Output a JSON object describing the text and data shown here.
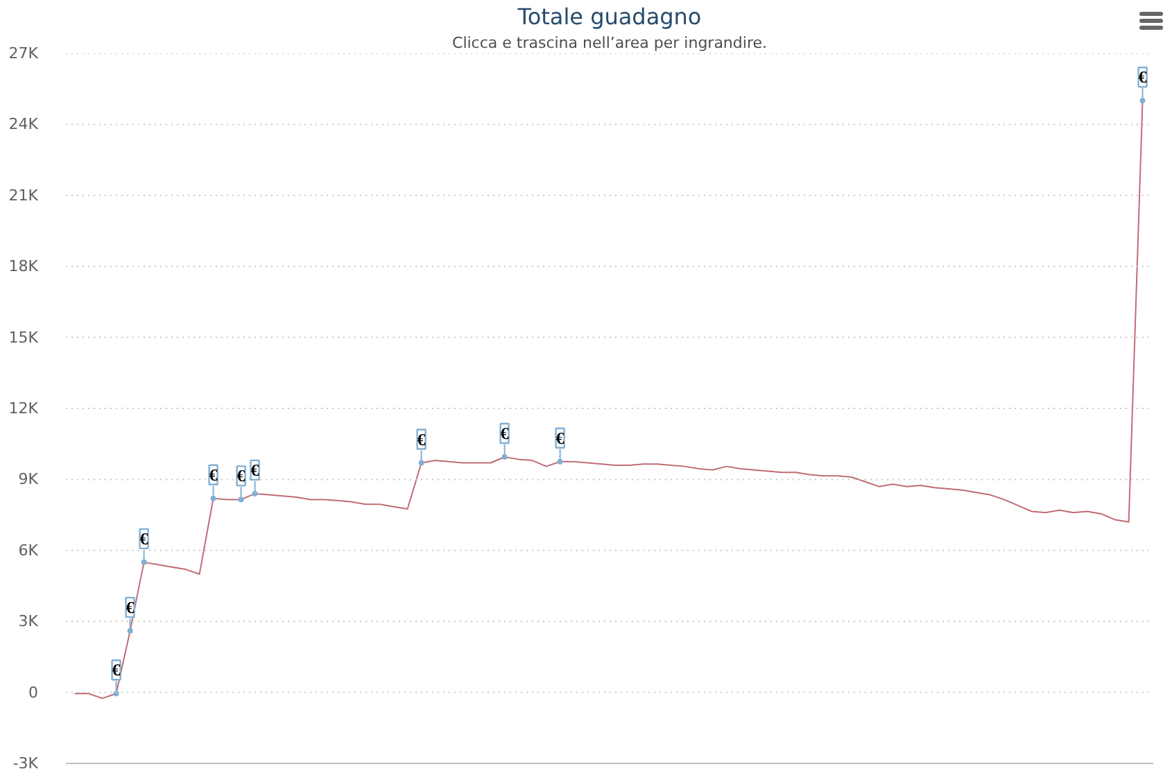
{
  "chart_data": {
    "type": "line",
    "title": "Totale guadagno",
    "subtitle": "Clicca e trascina nell’area per ingrandire.",
    "categories": [
      null,
      null,
      null,
      null,
      null,
      null,
      null,
      null,
      null,
      null,
      null,
      null,
      null,
      null,
      null,
      null,
      null,
      null,
      null,
      null,
      null,
      null,
      null,
      null,
      null,
      null,
      null,
      null,
      null,
      null,
      null,
      null,
      null,
      null,
      null,
      null,
      null,
      null,
      null,
      null,
      null,
      null,
      null,
      null,
      null,
      null,
      null,
      null,
      null,
      null,
      null,
      null,
      null,
      null,
      null,
      null,
      null,
      null,
      null,
      null,
      null,
      null,
      null,
      null,
      null,
      null,
      null,
      null,
      null,
      null,
      null,
      null,
      null,
      null,
      null,
      null,
      null,
      null
    ],
    "ylim": [
      -3000,
      27000
    ],
    "yticks": [
      {
        "value": -3000,
        "label": "-3K"
      },
      0,
      {
        "value": 3000,
        "label": "3K"
      },
      {
        "value": 6000,
        "label": "6K"
      },
      {
        "value": 9000,
        "label": "9K"
      },
      {
        "value": 12000,
        "label": "12K"
      },
      {
        "value": 15000,
        "label": "15K"
      },
      {
        "value": 18000,
        "label": "18K"
      },
      {
        "value": 21000,
        "label": "21K"
      },
      {
        "value": 24000,
        "label": "24K"
      },
      {
        "value": 27000,
        "label": "27K"
      }
    ],
    "grid": "y",
    "tick_labels": "y",
    "series": [
      {
        "color": "#c06c74",
        "values": [
          -50,
          -50,
          -250,
          -50,
          2600,
          5500,
          5400,
          5300,
          5200,
          5000,
          8200,
          8150,
          8150,
          8400,
          8350,
          8300,
          8250,
          8150,
          8150,
          8100,
          8050,
          7950,
          7950,
          7850,
          7750,
          9700,
          9800,
          9750,
          9700,
          9700,
          9700,
          9950,
          9850,
          9800,
          9550,
          9750,
          9750,
          9700,
          9650,
          9600,
          9600,
          9650,
          9650,
          9600,
          9550,
          9450,
          9400,
          9550,
          9450,
          9400,
          9350,
          9300,
          9300,
          9200,
          9150,
          9150,
          9100,
          8900,
          8700,
          8800,
          8700,
          8750,
          8650,
          8600,
          8550,
          8450,
          8350,
          8150,
          7900,
          7650,
          7600,
          7700,
          7600,
          7650,
          7550,
          7300,
          7200,
          25000
        ]
      },
      {
        "type": "scatter",
        "marker": "circle",
        "color": "#82afd3",
        "values": [
          null,
          null,
          null,
          -50,
          2600,
          5500,
          null,
          null,
          null,
          null,
          8200,
          null,
          8150,
          8400,
          null,
          null,
          null,
          null,
          null,
          null,
          null,
          null,
          null,
          null,
          null,
          9700,
          null,
          null,
          null,
          null,
          null,
          9950,
          null,
          null,
          null,
          9750,
          null,
          null,
          null,
          null,
          null,
          null,
          null,
          null,
          null,
          null,
          null,
          null,
          null,
          null,
          null,
          null,
          null,
          null,
          null,
          null,
          null,
          null,
          null,
          null,
          null,
          null,
          null,
          null,
          null,
          null,
          null,
          null,
          null,
          null,
          null,
          null,
          null,
          null,
          null,
          null,
          null,
          25000
        ],
        "value_labels": [
          null,
          null,
          null,
          "€",
          "€",
          "€",
          null,
          null,
          null,
          null,
          "€",
          null,
          "€",
          "€",
          null,
          null,
          null,
          null,
          null,
          null,
          null,
          null,
          null,
          null,
          null,
          "€",
          null,
          null,
          null,
          null,
          null,
          "€",
          null,
          null,
          null,
          "€",
          null,
          null,
          null,
          null,
          null,
          null,
          null,
          null,
          null,
          null,
          null,
          null,
          null,
          null,
          null,
          null,
          null,
          null,
          null,
          null,
          null,
          null,
          null,
          null,
          null,
          null,
          null,
          null,
          null,
          null,
          null,
          null,
          null,
          null,
          null,
          null,
          null,
          null,
          null,
          null,
          null,
          "€"
        ]
      }
    ]
  }
}
